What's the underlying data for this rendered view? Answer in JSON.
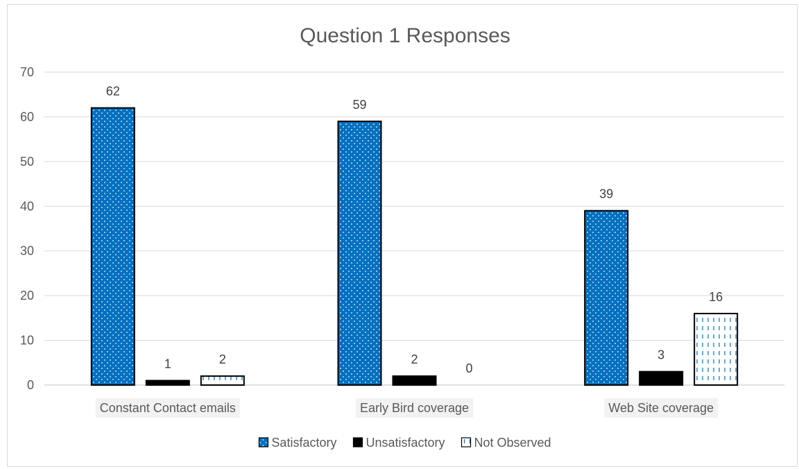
{
  "chart_data": {
    "type": "bar",
    "title": "Question 1 Responses",
    "xlabel": "",
    "ylabel": "",
    "categories": [
      "Constant Contact emails",
      "Early Bird coverage",
      "Web Site coverage"
    ],
    "series": [
      {
        "name": "Satisfactory",
        "values": [
          62,
          59,
          39
        ],
        "color": "#0070c0",
        "pattern": "dots"
      },
      {
        "name": "Unsatisfactory",
        "values": [
          1,
          2,
          3
        ],
        "color": "#000000",
        "pattern": "solid"
      },
      {
        "name": "Not Observed",
        "values": [
          2,
          0,
          16
        ],
        "color": "#0070c0",
        "pattern": "dashed-vertical"
      }
    ],
    "ylim": [
      0,
      70
    ],
    "yticks": [
      0,
      10,
      20,
      30,
      40,
      50,
      60,
      70
    ],
    "grid": true,
    "legend": "bottom",
    "data_labels": true
  }
}
